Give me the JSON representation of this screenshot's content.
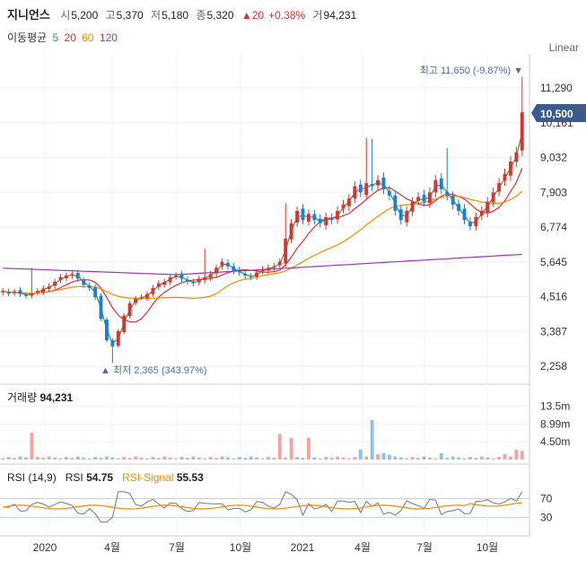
{
  "header": {
    "name": "지니언스",
    "open_label": "시",
    "open": "5,200",
    "high_label": "고",
    "high": "5,370",
    "low_label": "저",
    "low": "5,180",
    "close_label": "종",
    "close": "5,320",
    "change": "▲20",
    "change_pct": "+0.38%",
    "volume_label": "거",
    "volume": "94,231"
  },
  "ma_legend": {
    "label": "이동평균",
    "items": [
      {
        "period": "5",
        "color": "#2f9e44"
      },
      {
        "period": "20",
        "color": "#e03131"
      },
      {
        "period": "60",
        "color": "#f08c00"
      },
      {
        "period": "120",
        "color": "#9c36b5"
      }
    ]
  },
  "scale_mode": "Linear",
  "current_price": "10,500",
  "price_high_annotation": "최고 11,650 (-9.87%) ▼",
  "price_low_annotation": "▲ 최저 2,365 (343.97%)",
  "volume_panel": {
    "label": "거래량",
    "value": "94,231"
  },
  "rsi_panel": {
    "label": "RSI (14,9)",
    "rsi_label": "RSI",
    "rsi_value": "54.75",
    "signal_label": "RSI-Signal",
    "signal_value": "55.53",
    "signal_color": "#f08c00",
    "level_labels": [
      "70",
      "30"
    ]
  },
  "chart_data": {
    "type": "candlestick",
    "price_axis_ticks": [
      "11,290",
      "10,161",
      "9,032",
      "7,903",
      "6,774",
      "5,645",
      "4,516",
      "3,387",
      "2,258"
    ],
    "price_axis_values": [
      11290,
      10161,
      9032,
      7903,
      6774,
      5645,
      4516,
      3387,
      2258
    ],
    "volume_axis_ticks": [
      "13.5m",
      "8.99m",
      "4.50m"
    ],
    "volume_axis_values": [
      13.5,
      8.99,
      4.5
    ],
    "rsi_levels": [
      70,
      30
    ],
    "x_axis_ticks": [
      "2020",
      "4월",
      "7월",
      "10월",
      "2021",
      "4월",
      "7월",
      "10월"
    ],
    "up_color": "#e03131",
    "down_color": "#1c7ed6",
    "price_high": 11650,
    "price_low": 2365,
    "last_close": 10500,
    "closes": [
      4700,
      4620,
      4680,
      4600,
      4550,
      4620,
      4700,
      4780,
      4850,
      5000,
      5150,
      5200,
      5250,
      5100,
      4900,
      4800,
      4500,
      3800,
      3100,
      2900,
      3400,
      3900,
      4300,
      4450,
      4500,
      4600,
      4800,
      4950,
      5000,
      5150,
      5200,
      5100,
      5000,
      4950,
      5100,
      5150,
      5250,
      5450,
      5650,
      5500,
      5350,
      5300,
      5200,
      5150,
      5300,
      5400,
      5450,
      5500,
      5650,
      6400,
      6900,
      7300,
      7000,
      7200,
      7000,
      6900,
      7100,
      7000,
      7300,
      7500,
      7700,
      8100,
      7900,
      8200,
      8100,
      8300,
      8000,
      7800,
      7300,
      7000,
      7300,
      7600,
      7750,
      7600,
      7900,
      8300,
      8000,
      7800,
      7500,
      7300,
      7000,
      6800,
      7100,
      7300,
      7600,
      7900,
      8200,
      8500,
      8900,
      9200,
      10500
    ]
  }
}
